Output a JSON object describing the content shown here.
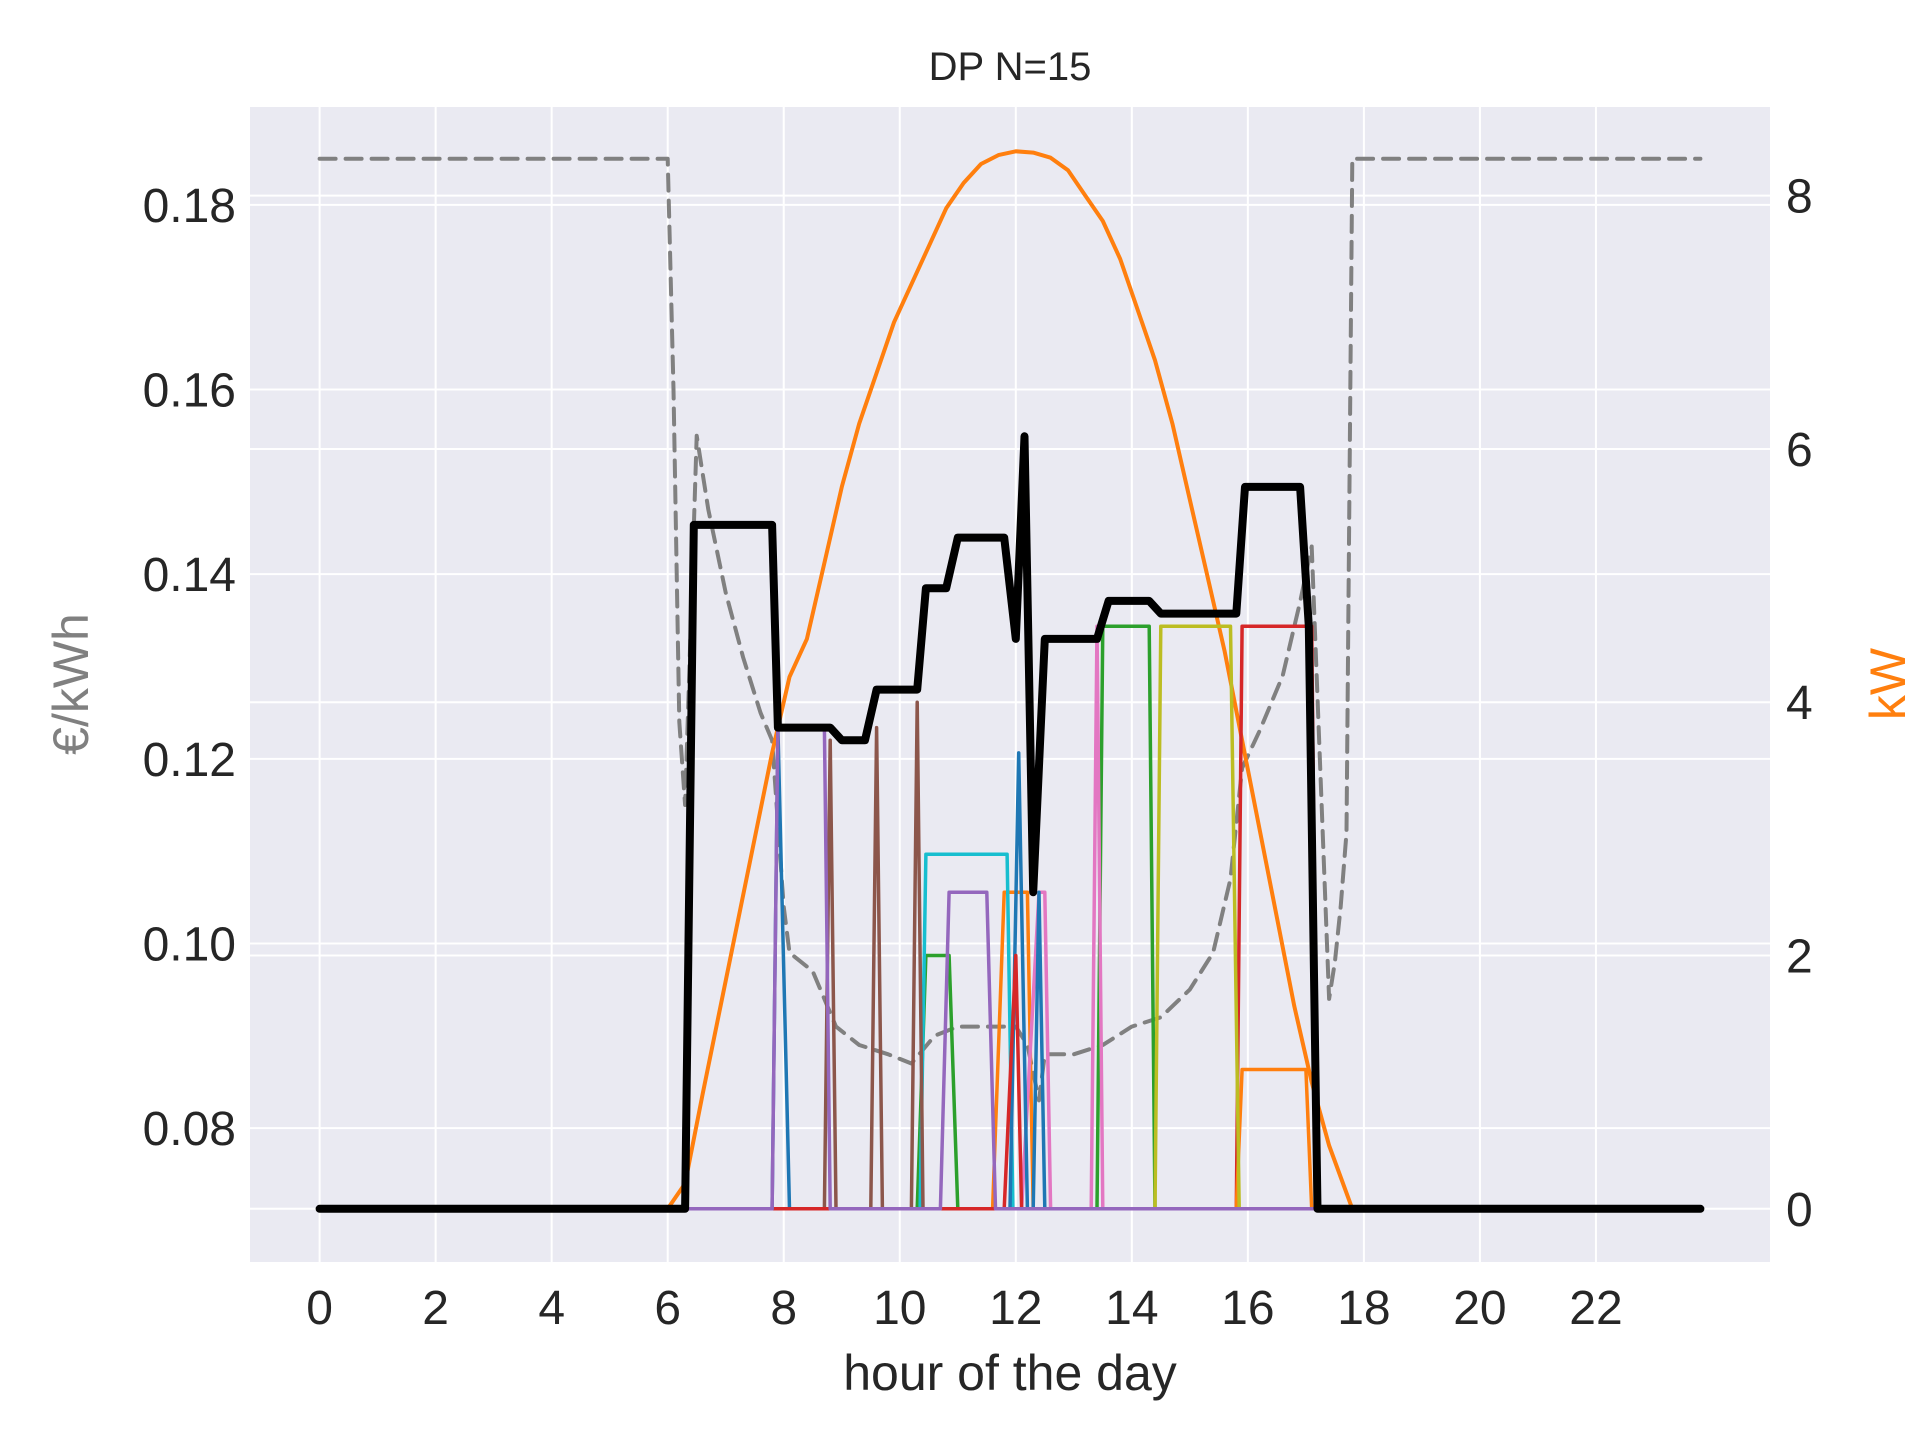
{
  "chart_data": {
    "type": "line",
    "title": "DP N=15",
    "xlabel": "hour of the day",
    "ylabel_left": "€/kWh",
    "ylabel_right": "kW",
    "xlim": [
      -1.2,
      25.0
    ],
    "ylim_left": [
      0.0655,
      0.1906
    ],
    "ylim_right": [
      -0.42,
      8.7
    ],
    "grid": true,
    "xticks": [
      0,
      2,
      4,
      6,
      8,
      10,
      12,
      14,
      16,
      18,
      20,
      22
    ],
    "yticks_left": [
      0.08,
      0.1,
      0.12,
      0.14,
      0.16,
      0.18
    ],
    "yticks_left_labels": [
      "0.08",
      "0.10",
      "0.12",
      "0.14",
      "0.16",
      "0.18"
    ],
    "yticks_right": [
      0,
      2,
      4,
      6,
      8
    ],
    "colors": {
      "ylabel_left": "#808080",
      "ylabel_right": "#ff7f0e",
      "background": "#eaeaf2",
      "grid": "#ffffff"
    },
    "series": [
      {
        "axis": "left",
        "color": "#808080",
        "width": 4,
        "dash": "16,10",
        "points": [
          [
            0,
            0.185
          ],
          [
            6.0,
            0.185
          ],
          [
            6.1,
            0.16
          ],
          [
            6.2,
            0.124
          ],
          [
            6.3,
            0.115
          ],
          [
            6.5,
            0.155
          ],
          [
            6.7,
            0.147
          ],
          [
            7.0,
            0.138
          ],
          [
            7.3,
            0.131
          ],
          [
            7.6,
            0.125
          ],
          [
            7.8,
            0.122
          ],
          [
            8.0,
            0.104
          ],
          [
            8.1,
            0.099
          ],
          [
            8.5,
            0.097
          ],
          [
            8.9,
            0.091
          ],
          [
            9.3,
            0.089
          ],
          [
            9.8,
            0.088
          ],
          [
            10.2,
            0.087
          ],
          [
            10.6,
            0.09
          ],
          [
            11.0,
            0.091
          ],
          [
            11.5,
            0.091
          ],
          [
            12.0,
            0.091
          ],
          [
            12.2,
            0.089
          ],
          [
            12.4,
            0.083
          ],
          [
            12.5,
            0.088
          ],
          [
            13.0,
            0.088
          ],
          [
            13.5,
            0.089
          ],
          [
            14.0,
            0.091
          ],
          [
            14.5,
            0.092
          ],
          [
            15.0,
            0.095
          ],
          [
            15.4,
            0.099
          ],
          [
            15.7,
            0.107
          ],
          [
            15.9,
            0.119
          ],
          [
            16.2,
            0.123
          ],
          [
            16.6,
            0.129
          ],
          [
            16.9,
            0.137
          ],
          [
            17.1,
            0.143
          ],
          [
            17.4,
            0.094
          ],
          [
            17.5,
            0.098
          ],
          [
            17.6,
            0.104
          ],
          [
            17.7,
            0.112
          ],
          [
            17.8,
            0.185
          ],
          [
            23.8,
            0.185
          ]
        ]
      },
      {
        "axis": "right",
        "color": "#ff7f0e",
        "width": 4,
        "points": [
          [
            0,
            0
          ],
          [
            6.0,
            0
          ],
          [
            6.3,
            0.2
          ],
          [
            6.6,
            0.9
          ],
          [
            7.0,
            1.8
          ],
          [
            7.4,
            2.7
          ],
          [
            7.8,
            3.6
          ],
          [
            8.1,
            4.2
          ],
          [
            8.4,
            4.5
          ],
          [
            8.7,
            5.1
          ],
          [
            9.0,
            5.7
          ],
          [
            9.3,
            6.2
          ],
          [
            9.6,
            6.6
          ],
          [
            9.9,
            7.0
          ],
          [
            10.2,
            7.3
          ],
          [
            10.5,
            7.6
          ],
          [
            10.8,
            7.9
          ],
          [
            11.1,
            8.1
          ],
          [
            11.4,
            8.25
          ],
          [
            11.7,
            8.32
          ],
          [
            12.0,
            8.35
          ],
          [
            12.3,
            8.34
          ],
          [
            12.6,
            8.3
          ],
          [
            12.9,
            8.2
          ],
          [
            13.2,
            8.0
          ],
          [
            13.5,
            7.8
          ],
          [
            13.8,
            7.5
          ],
          [
            14.1,
            7.1
          ],
          [
            14.4,
            6.7
          ],
          [
            14.7,
            6.2
          ],
          [
            15.0,
            5.6
          ],
          [
            15.3,
            5.0
          ],
          [
            15.6,
            4.4
          ],
          [
            15.9,
            3.7
          ],
          [
            16.2,
            3.0
          ],
          [
            16.5,
            2.3
          ],
          [
            16.8,
            1.6
          ],
          [
            17.1,
            1.0
          ],
          [
            17.4,
            0.5
          ],
          [
            17.8,
            0
          ],
          [
            23.8,
            0
          ]
        ]
      },
      {
        "axis": "right",
        "color": "#d62728",
        "width": 3.5,
        "points": [
          [
            0,
            0
          ],
          [
            15.8,
            0
          ],
          [
            15.9,
            4.6
          ],
          [
            17.1,
            4.6
          ],
          [
            17.2,
            0
          ],
          [
            23.8,
            0
          ]
        ]
      },
      {
        "axis": "right",
        "color": "#ff7f0e",
        "width": 3.5,
        "points": [
          [
            11.6,
            0
          ],
          [
            11.8,
            2.5
          ],
          [
            12.2,
            2.5
          ],
          [
            12.3,
            0
          ],
          [
            15.8,
            0
          ],
          [
            15.9,
            1.1
          ],
          [
            17.0,
            1.1
          ],
          [
            17.1,
            0
          ]
        ]
      },
      {
        "axis": "right",
        "color": "#2ca02c",
        "width": 3.5,
        "points": [
          [
            10.3,
            0
          ],
          [
            10.45,
            2.0
          ],
          [
            10.85,
            2.0
          ],
          [
            11.0,
            0
          ],
          [
            13.4,
            0
          ],
          [
            13.5,
            4.6
          ],
          [
            14.3,
            4.6
          ],
          [
            14.4,
            0
          ]
        ]
      },
      {
        "axis": "right",
        "color": "#17becf",
        "width": 3.5,
        "points": [
          [
            10.35,
            0
          ],
          [
            10.45,
            2.8
          ],
          [
            11.85,
            2.8
          ],
          [
            11.95,
            0
          ]
        ]
      },
      {
        "axis": "right",
        "color": "#bcbd22",
        "width": 3.5,
        "points": [
          [
            14.4,
            0
          ],
          [
            14.5,
            4.6
          ],
          [
            15.7,
            4.6
          ],
          [
            15.85,
            0
          ]
        ]
      },
      {
        "axis": "right",
        "color": "#e377c2",
        "width": 3.5,
        "points": [
          [
            12.1,
            0
          ],
          [
            12.4,
            2.5
          ],
          [
            12.5,
            2.5
          ],
          [
            12.6,
            0
          ],
          [
            13.3,
            0
          ],
          [
            13.4,
            4.6
          ],
          [
            13.5,
            0
          ]
        ]
      },
      {
        "axis": "right",
        "color": "#8c564b",
        "width": 3.5,
        "points": [
          [
            8.7,
            0
          ],
          [
            8.8,
            3.7
          ],
          [
            8.9,
            0
          ],
          [
            9.5,
            0
          ],
          [
            9.6,
            3.8
          ],
          [
            9.7,
            0
          ],
          [
            10.2,
            0
          ],
          [
            10.3,
            4.0
          ],
          [
            10.4,
            0
          ]
        ]
      },
      {
        "axis": "right",
        "color": "#1f77b4",
        "width": 3.5,
        "points": [
          [
            7.8,
            0
          ],
          [
            7.9,
            3.8
          ],
          [
            8.1,
            0
          ],
          [
            11.9,
            0
          ],
          [
            12.05,
            3.6
          ],
          [
            12.2,
            0
          ],
          [
            12.3,
            0
          ],
          [
            12.4,
            2.5
          ],
          [
            12.5,
            0
          ]
        ]
      },
      {
        "axis": "right",
        "color": "#d62728",
        "width": 3.5,
        "points": [
          [
            7.9,
            0
          ],
          [
            8.9,
            0
          ],
          [
            11.8,
            0
          ],
          [
            12.0,
            2.0
          ],
          [
            12.1,
            0
          ]
        ]
      },
      {
        "axis": "right",
        "color": "#9467bd",
        "width": 3.5,
        "points": [
          [
            0,
            0
          ],
          [
            7.8,
            0
          ],
          [
            7.9,
            3.8
          ],
          [
            8.7,
            3.8
          ],
          [
            8.8,
            0
          ],
          [
            10.7,
            0
          ],
          [
            10.85,
            2.5
          ],
          [
            11.5,
            2.5
          ],
          [
            11.65,
            0
          ],
          [
            17.3,
            0
          ]
        ]
      },
      {
        "axis": "right",
        "color": "#000000",
        "width": 8,
        "points": [
          [
            0,
            0
          ],
          [
            6.3,
            0
          ],
          [
            6.45,
            5.4
          ],
          [
            7.8,
            5.4
          ],
          [
            7.9,
            3.8
          ],
          [
            8.8,
            3.8
          ],
          [
            9.0,
            3.7
          ],
          [
            9.4,
            3.7
          ],
          [
            9.6,
            4.1
          ],
          [
            10.3,
            4.1
          ],
          [
            10.45,
            4.9
          ],
          [
            10.8,
            4.9
          ],
          [
            11.0,
            5.3
          ],
          [
            11.8,
            5.3
          ],
          [
            12.0,
            4.5
          ],
          [
            12.15,
            6.1
          ],
          [
            12.3,
            2.5
          ],
          [
            12.5,
            4.5
          ],
          [
            13.4,
            4.5
          ],
          [
            13.6,
            4.8
          ],
          [
            14.3,
            4.8
          ],
          [
            14.5,
            4.7
          ],
          [
            15.8,
            4.7
          ],
          [
            15.95,
            5.7
          ],
          [
            16.9,
            5.7
          ],
          [
            17.05,
            4.6
          ],
          [
            17.2,
            0
          ],
          [
            23.8,
            0
          ]
        ]
      }
    ]
  }
}
